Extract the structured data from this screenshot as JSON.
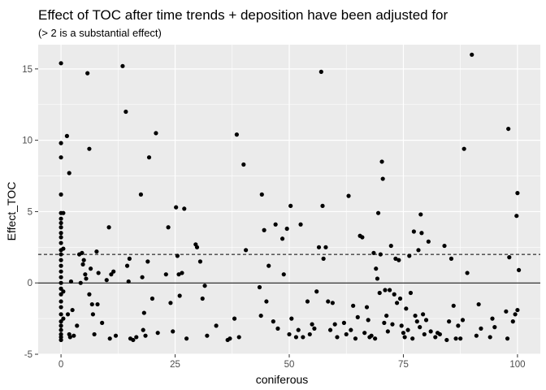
{
  "chart_data": {
    "type": "scatter",
    "title": "Effect of TOC after time trends + deposition have been adjusted for",
    "subtitle": "(> 2 is a substantial effect)",
    "xlabel": "coniferous",
    "ylabel": "Effect_TOC",
    "xlim": [
      -5,
      105
    ],
    "ylim": [
      -5,
      16.7
    ],
    "x_ticks": [
      0,
      25,
      50,
      75,
      100
    ],
    "y_ticks": [
      -5,
      0,
      5,
      10,
      15
    ],
    "x_tick_labels": [
      "0",
      "25",
      "50",
      "75",
      "100"
    ],
    "y_tick_labels": [
      "-5",
      "0",
      "5",
      "10",
      "15"
    ],
    "grid": true,
    "background": "#ebebeb",
    "point_color": "#000000",
    "reference_lines": [
      {
        "y": 2,
        "style": "dashed"
      },
      {
        "y": 0,
        "style": "solid"
      }
    ],
    "points": [
      [
        0,
        15.4
      ],
      [
        0,
        9.8
      ],
      [
        0,
        8.8
      ],
      [
        0,
        6.2
      ],
      [
        0,
        4.9
      ],
      [
        0,
        4.5
      ],
      [
        0,
        4.2
      ],
      [
        0,
        3.9
      ],
      [
        0,
        3.5
      ],
      [
        0,
        3.2
      ],
      [
        0,
        2.8
      ],
      [
        0,
        2.3
      ],
      [
        0,
        2.0
      ],
      [
        0,
        1.6
      ],
      [
        0,
        1.2
      ],
      [
        0,
        0.8
      ],
      [
        0,
        0.4
      ],
      [
        0,
        0.0
      ],
      [
        0,
        -0.4
      ],
      [
        0,
        -0.8
      ],
      [
        0,
        -1.3
      ],
      [
        0,
        -1.7
      ],
      [
        0,
        -2.2
      ],
      [
        0,
        -2.7
      ],
      [
        0,
        -3.0
      ],
      [
        0,
        -3.3
      ],
      [
        0,
        -3.6
      ],
      [
        0,
        -3.8
      ],
      [
        0,
        -4.0
      ],
      [
        0.5,
        4.9
      ],
      [
        0.5,
        2.4
      ],
      [
        0.5,
        -0.6
      ],
      [
        0.5,
        -2.5
      ],
      [
        1.3,
        10.3
      ],
      [
        1.8,
        7.7
      ],
      [
        1.5,
        -2.2
      ],
      [
        1.8,
        -3.6
      ],
      [
        2.0,
        -3.8
      ],
      [
        2.2,
        0.1
      ],
      [
        2.5,
        -1.9
      ],
      [
        2.8,
        -3.7
      ],
      [
        3.5,
        -3.0
      ],
      [
        4.0,
        2.0
      ],
      [
        4.3,
        0.0
      ],
      [
        4.6,
        2.1
      ],
      [
        4.8,
        1.3
      ],
      [
        5.0,
        1.6
      ],
      [
        5.3,
        0.6
      ],
      [
        5.5,
        0.3
      ],
      [
        5.8,
        14.7
      ],
      [
        6.2,
        9.4
      ],
      [
        6.2,
        -0.8
      ],
      [
        6.5,
        1.0
      ],
      [
        6.8,
        -1.5
      ],
      [
        7.0,
        -2.2
      ],
      [
        7.3,
        -3.6
      ],
      [
        7.8,
        2.2
      ],
      [
        8.2,
        0.7
      ],
      [
        8.0,
        -1.5
      ],
      [
        9.0,
        -2.8
      ],
      [
        10.0,
        0.2
      ],
      [
        10.5,
        3.9
      ],
      [
        10.7,
        -3.9
      ],
      [
        11.0,
        0.6
      ],
      [
        11.5,
        0.8
      ],
      [
        12.0,
        -3.7
      ],
      [
        13.5,
        15.2
      ],
      [
        14.2,
        12.0
      ],
      [
        14.5,
        1.2
      ],
      [
        14.8,
        0.1
      ],
      [
        15.0,
        1.7
      ],
      [
        15.2,
        -3.9
      ],
      [
        15.8,
        -4.0
      ],
      [
        16.5,
        -3.8
      ],
      [
        17.5,
        6.2
      ],
      [
        17.8,
        0.4
      ],
      [
        18.2,
        -2.1
      ],
      [
        18.0,
        -3.3
      ],
      [
        18.5,
        -3.7
      ],
      [
        19.0,
        1.5
      ],
      [
        19.3,
        8.8
      ],
      [
        20.0,
        -1.1
      ],
      [
        20.8,
        10.5
      ],
      [
        21.2,
        -3.5
      ],
      [
        23.0,
        0.6
      ],
      [
        23.5,
        3.9
      ],
      [
        24.0,
        -1.4
      ],
      [
        24.5,
        -3.4
      ],
      [
        25.2,
        5.3
      ],
      [
        25.5,
        1.9
      ],
      [
        25.8,
        0.6
      ],
      [
        26.0,
        -0.9
      ],
      [
        26.5,
        0.7
      ],
      [
        27.0,
        5.2
      ],
      [
        27.5,
        -3.9
      ],
      [
        29.5,
        2.7
      ],
      [
        29.8,
        2.5
      ],
      [
        30.5,
        1.5
      ],
      [
        31.5,
        -0.2
      ],
      [
        31.0,
        -1.1
      ],
      [
        32.0,
        -3.7
      ],
      [
        34.0,
        -3.0
      ],
      [
        36.5,
        -4.0
      ],
      [
        37.0,
        -3.9
      ],
      [
        38.0,
        -2.5
      ],
      [
        38.5,
        10.4
      ],
      [
        39.0,
        -3.8
      ],
      [
        40.0,
        8.3
      ],
      [
        40.5,
        2.3
      ],
      [
        43.5,
        -0.3
      ],
      [
        43.8,
        -2.3
      ],
      [
        44.0,
        6.2
      ],
      [
        44.5,
        3.7
      ],
      [
        45.0,
        -1.3
      ],
      [
        45.5,
        1.2
      ],
      [
        46.5,
        -2.7
      ],
      [
        47.0,
        4.1
      ],
      [
        47.5,
        -3.2
      ],
      [
        48.5,
        3.1
      ],
      [
        48.8,
        0.6
      ],
      [
        49.5,
        3.8
      ],
      [
        50.0,
        -3.6
      ],
      [
        50.3,
        5.4
      ],
      [
        50.5,
        -2.5
      ],
      [
        51.5,
        -3.8
      ],
      [
        52.5,
        4.1
      ],
      [
        52.0,
        -3.3
      ],
      [
        53.0,
        -3.8
      ],
      [
        54.0,
        -1.3
      ],
      [
        54.5,
        -3.6
      ],
      [
        55.0,
        -2.9
      ],
      [
        55.5,
        -3.2
      ],
      [
        56.0,
        -0.6
      ],
      [
        56.5,
        2.5
      ],
      [
        57.0,
        14.8
      ],
      [
        57.3,
        5.4
      ],
      [
        57.5,
        1.7
      ],
      [
        58.0,
        2.5
      ],
      [
        58.5,
        -1.3
      ],
      [
        59.0,
        -3.3
      ],
      [
        59.5,
        -1.4
      ],
      [
        60.0,
        -2.9
      ],
      [
        60.5,
        -3.8
      ],
      [
        62.0,
        -2.8
      ],
      [
        62.5,
        -3.6
      ],
      [
        63.0,
        6.1
      ],
      [
        63.5,
        -3.3
      ],
      [
        64.0,
        -1.6
      ],
      [
        64.5,
        -3.9
      ],
      [
        65.0,
        -2.4
      ],
      [
        65.5,
        3.3
      ],
      [
        66.0,
        3.2
      ],
      [
        66.5,
        -3.5
      ],
      [
        67.0,
        -1.7
      ],
      [
        67.3,
        -2.6
      ],
      [
        67.6,
        -3.8
      ],
      [
        68.0,
        -3.7
      ],
      [
        68.5,
        2.1
      ],
      [
        68.8,
        -3.9
      ],
      [
        69.0,
        1.0
      ],
      [
        69.3,
        0.3
      ],
      [
        69.5,
        4.9
      ],
      [
        69.8,
        -0.7
      ],
      [
        70.0,
        2.0
      ],
      [
        70.3,
        8.5
      ],
      [
        70.5,
        7.3
      ],
      [
        70.8,
        -2.8
      ],
      [
        71.0,
        -0.5
      ],
      [
        71.3,
        -2.3
      ],
      [
        71.6,
        -3.4
      ],
      [
        72.0,
        -0.5
      ],
      [
        72.3,
        2.6
      ],
      [
        72.6,
        -2.9
      ],
      [
        73.0,
        -0.8
      ],
      [
        73.3,
        1.7
      ],
      [
        73.6,
        -1.4
      ],
      [
        74.0,
        1.6
      ],
      [
        74.3,
        -1.1
      ],
      [
        74.6,
        -3.0
      ],
      [
        75.0,
        -3.5
      ],
      [
        75.3,
        -3.8
      ],
      [
        75.6,
        -1.8
      ],
      [
        76.0,
        -3.3
      ],
      [
        76.3,
        1.9
      ],
      [
        76.6,
        -0.7
      ],
      [
        77.0,
        -3.9
      ],
      [
        77.3,
        3.6
      ],
      [
        77.6,
        -2.3
      ],
      [
        78.0,
        -2.7
      ],
      [
        78.3,
        2.3
      ],
      [
        78.6,
        -3.1
      ],
      [
        78.8,
        4.8
      ],
      [
        79.0,
        3.5
      ],
      [
        79.3,
        -2.2
      ],
      [
        79.6,
        -3.6
      ],
      [
        80.0,
        -2.6
      ],
      [
        80.5,
        2.9
      ],
      [
        81.0,
        -3.4
      ],
      [
        82.0,
        -3.8
      ],
      [
        82.5,
        -3.5
      ],
      [
        83.0,
        -3.6
      ],
      [
        84.0,
        2.6
      ],
      [
        84.5,
        -4.0
      ],
      [
        85.0,
        -2.7
      ],
      [
        85.5,
        1.7
      ],
      [
        86.0,
        -1.6
      ],
      [
        86.5,
        -3.9
      ],
      [
        87.0,
        -3.0
      ],
      [
        87.5,
        -3.9
      ],
      [
        88.0,
        -2.6
      ],
      [
        88.3,
        9.4
      ],
      [
        89.0,
        0.7
      ],
      [
        90.0,
        16.0
      ],
      [
        91.0,
        -3.7
      ],
      [
        91.5,
        -1.5
      ],
      [
        92.0,
        -3.2
      ],
      [
        94.0,
        -3.8
      ],
      [
        94.5,
        -2.5
      ],
      [
        95.0,
        -3.1
      ],
      [
        97.5,
        -2.0
      ],
      [
        97.8,
        -3.9
      ],
      [
        98.0,
        10.8
      ],
      [
        98.2,
        1.8
      ],
      [
        99.0,
        -2.7
      ],
      [
        99.5,
        -2.2
      ],
      [
        99.8,
        4.7
      ],
      [
        100.0,
        6.3
      ],
      [
        100.0,
        -1.9
      ],
      [
        100.3,
        0.9
      ]
    ]
  }
}
